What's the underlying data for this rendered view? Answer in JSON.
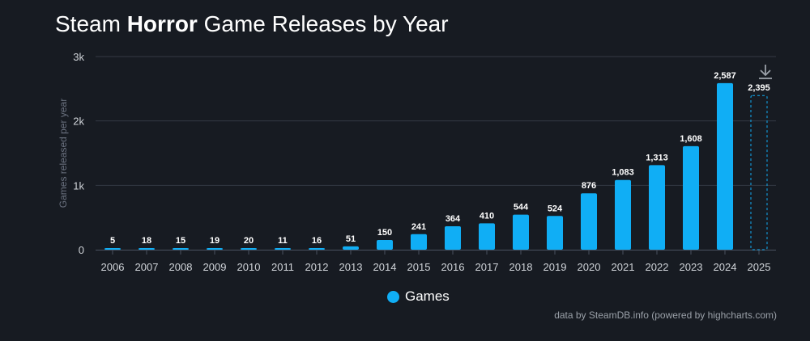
{
  "header": {
    "title_part1": "Steam ",
    "title_bold": "Horror",
    "title_part2": " Game Releases by Year"
  },
  "legend": {
    "label": "Games",
    "color": "#10aef5"
  },
  "credits": "data by SteamDB.info (powered by highcharts.com)",
  "download_icon": "download-icon",
  "colors": {
    "bar": "#10aef5",
    "background": "#171b22",
    "grid": "#343a44",
    "axis_text": "#d0d4d9",
    "axis_title": "#6b7280"
  },
  "chart_data": {
    "type": "bar",
    "title": "Steam Horror Game Releases by Year",
    "xlabel": "",
    "ylabel": "Games released per year",
    "ylim": [
      0,
      3000
    ],
    "yticks": [
      0,
      1000,
      2000,
      3000
    ],
    "ytick_labels": [
      "0",
      "1k",
      "2k",
      "3k"
    ],
    "grid": true,
    "legend_position": "bottom-center",
    "categories": [
      "2006",
      "2007",
      "2008",
      "2009",
      "2010",
      "2011",
      "2012",
      "2013",
      "2014",
      "2015",
      "2016",
      "2017",
      "2018",
      "2019",
      "2020",
      "2021",
      "2022",
      "2023",
      "2024",
      "2025"
    ],
    "series": [
      {
        "name": "Games",
        "values": [
          5,
          18,
          15,
          19,
          20,
          11,
          16,
          51,
          150,
          241,
          364,
          410,
          544,
          524,
          876,
          1083,
          1313,
          1608,
          2587,
          null
        ],
        "labels": [
          "5",
          "18",
          "15",
          "19",
          "20",
          "11",
          "16",
          "51",
          "150",
          "241",
          "364",
          "410",
          "544",
          "524",
          "876",
          "1,083",
          "1,313",
          "1,608",
          "2,587",
          ""
        ]
      }
    ],
    "projection": {
      "category": "2025",
      "value": 2395,
      "label": "2,395",
      "style": "dashed-outline"
    }
  }
}
